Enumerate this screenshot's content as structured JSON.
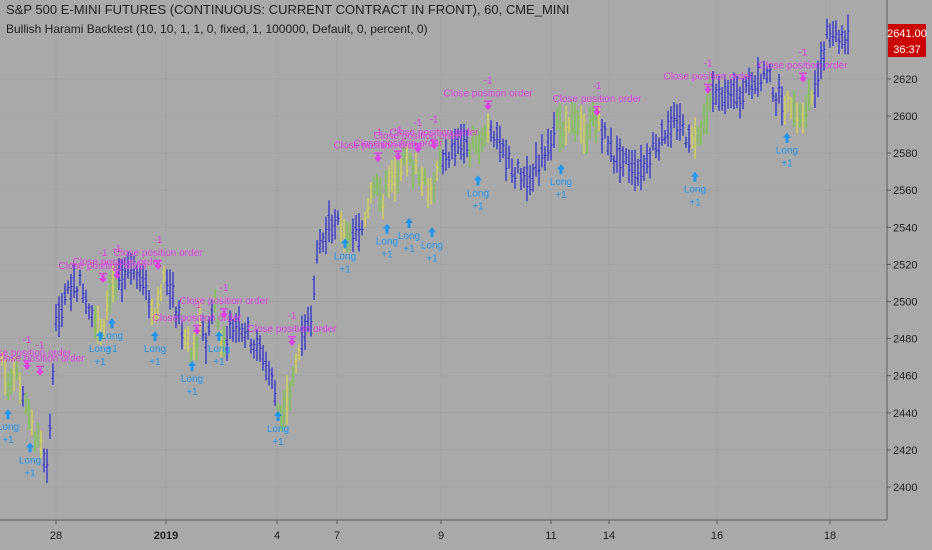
{
  "header": {
    "title": "S&P 500 E-MINI FUTURES (CONTINUOUS: CURRENT CONTRACT IN FRONT), 60, CME_MINI",
    "subtitle": "Bullish Harami Backtest (10, 10, 1, 1, 0, fixed, 1, 100000, Default, 0, percent, 0)"
  },
  "price_badge": {
    "price": "2641.00",
    "countdown": "36:37"
  },
  "colors": {
    "background": "#a9a9a9",
    "bar": "#2f2fd0",
    "bar_bull": "#7ac943",
    "bar_bear": "#d8d84a",
    "long_arrow": "#2196f3",
    "close_arrow": "#e040e8",
    "badge": "#cc0000"
  },
  "chart_data": {
    "type": "ohlc",
    "ylim": [
      2390,
      2660
    ],
    "y_ticks": [
      2400,
      2420,
      2440,
      2460,
      2480,
      2500,
      2520,
      2540,
      2560,
      2580,
      2600,
      2620
    ],
    "x_ticks": [
      "28",
      "2019",
      "4",
      "7",
      "9",
      "11",
      "14",
      "16",
      "18"
    ],
    "price_path": [
      [
        0,
        2475
      ],
      [
        8,
        2452
      ],
      [
        15,
        2468
      ],
      [
        25,
        2445
      ],
      [
        32,
        2432
      ],
      [
        42,
        2420
      ],
      [
        48,
        2405
      ],
      [
        55,
        2488
      ],
      [
        65,
        2500
      ],
      [
        78,
        2512
      ],
      [
        90,
        2500
      ],
      [
        100,
        2482
      ],
      [
        112,
        2508
      ],
      [
        120,
        2510
      ],
      [
        135,
        2520
      ],
      [
        148,
        2505
      ],
      [
        155,
        2492
      ],
      [
        165,
        2515
      ],
      [
        175,
        2500
      ],
      [
        185,
        2478
      ],
      [
        192,
        2470
      ],
      [
        200,
        2488
      ],
      [
        208,
        2478
      ],
      [
        214,
        2505
      ],
      [
        220,
        2478
      ],
      [
        230,
        2485
      ],
      [
        240,
        2490
      ],
      [
        255,
        2478
      ],
      [
        270,
        2462
      ],
      [
        280,
        2440
      ],
      [
        290,
        2450
      ],
      [
        300,
        2478
      ],
      [
        310,
        2490
      ],
      [
        318,
        2530
      ],
      [
        330,
        2542
      ],
      [
        345,
        2538
      ],
      [
        360,
        2535
      ],
      [
        372,
        2562
      ],
      [
        382,
        2555
      ],
      [
        395,
        2568
      ],
      [
        405,
        2576
      ],
      [
        418,
        2572
      ],
      [
        430,
        2558
      ],
      [
        440,
        2575
      ],
      [
        452,
        2582
      ],
      [
        462,
        2585
      ],
      [
        472,
        2580
      ],
      [
        482,
        2592
      ],
      [
        492,
        2596
      ],
      [
        502,
        2580
      ],
      [
        515,
        2570
      ],
      [
        530,
        2566
      ],
      [
        545,
        2582
      ],
      [
        560,
        2595
      ],
      [
        572,
        2598
      ],
      [
        585,
        2592
      ],
      [
        600,
        2596
      ],
      [
        612,
        2580
      ],
      [
        625,
        2575
      ],
      [
        640,
        2570
      ],
      [
        652,
        2582
      ],
      [
        665,
        2592
      ],
      [
        678,
        2596
      ],
      [
        692,
        2586
      ],
      [
        702,
        2590
      ],
      [
        710,
        2612
      ],
      [
        725,
        2610
      ],
      [
        740,
        2612
      ],
      [
        755,
        2620
      ],
      [
        768,
        2622
      ],
      [
        778,
        2610
      ],
      [
        790,
        2605
      ],
      [
        800,
        2600
      ],
      [
        812,
        2612
      ],
      [
        820,
        2628
      ],
      [
        828,
        2646
      ],
      [
        838,
        2645
      ],
      [
        848,
        2642
      ]
    ],
    "long_entries": [
      {
        "x": 8,
        "y": 2442,
        "label": "Long",
        "qty": "+1"
      },
      {
        "x": 30,
        "y": 2424,
        "label": "Long",
        "qty": "+1"
      },
      {
        "x": 100,
        "y": 2484,
        "label": "Long",
        "qty": "+1"
      },
      {
        "x": 112,
        "y": 2491,
        "label": "Long",
        "qty": "+1"
      },
      {
        "x": 155,
        "y": 2484,
        "label": "Long",
        "qty": "+1"
      },
      {
        "x": 192,
        "y": 2468,
        "label": "Long",
        "qty": "+1"
      },
      {
        "x": 219,
        "y": 2484,
        "label": "Long",
        "qty": "+1"
      },
      {
        "x": 278,
        "y": 2441,
        "label": "Long",
        "qty": "+1"
      },
      {
        "x": 345,
        "y": 2534,
        "label": "Long",
        "qty": "+1"
      },
      {
        "x": 387,
        "y": 2542,
        "label": "Long",
        "qty": "+1"
      },
      {
        "x": 409,
        "y": 2545,
        "label": "Long",
        "qty": "+1"
      },
      {
        "x": 432,
        "y": 2540,
        "label": "Long",
        "qty": "+1"
      },
      {
        "x": 478,
        "y": 2568,
        "label": "Long",
        "qty": "+1"
      },
      {
        "x": 561,
        "y": 2574,
        "label": "Long",
        "qty": "+1"
      },
      {
        "x": 695,
        "y": 2570,
        "label": "Long",
        "qty": "+1"
      },
      {
        "x": 787,
        "y": 2591,
        "label": "Long",
        "qty": "+1"
      }
    ],
    "close_orders": [
      {
        "x": 27,
        "y": 2463,
        "label": "Close position order",
        "qty": "-1"
      },
      {
        "x": 40,
        "y": 2460,
        "label": "Close position order",
        "qty": "-1"
      },
      {
        "x": 103,
        "y": 2510,
        "label": "Close position order",
        "qty": "-1"
      },
      {
        "x": 117,
        "y": 2512,
        "label": "Close position order",
        "qty": "-1"
      },
      {
        "x": 158,
        "y": 2517,
        "label": "Close position order",
        "qty": "-1"
      },
      {
        "x": 197,
        "y": 2482,
        "label": "Close position order",
        "qty": "-1"
      },
      {
        "x": 224,
        "y": 2491,
        "label": "Close position order",
        "qty": "-1"
      },
      {
        "x": 292,
        "y": 2476,
        "label": "Close position order",
        "qty": "-1"
      },
      {
        "x": 378,
        "y": 2575,
        "label": "Close position order",
        "qty": "-1"
      },
      {
        "x": 398,
        "y": 2576,
        "label": "Close position order",
        "qty": "-1"
      },
      {
        "x": 418,
        "y": 2580,
        "label": "Close position order",
        "qty": "-1"
      },
      {
        "x": 434,
        "y": 2582,
        "label": "Close position order",
        "qty": "-1"
      },
      {
        "x": 488,
        "y": 2603,
        "label": "Close position order",
        "qty": "-1"
      },
      {
        "x": 597,
        "y": 2600,
        "label": "Close position order",
        "qty": "-1"
      },
      {
        "x": 708,
        "y": 2612,
        "label": "Close position order",
        "qty": "-1"
      },
      {
        "x": 803,
        "y": 2618,
        "label": "Close position order",
        "qty": "-1"
      }
    ]
  }
}
